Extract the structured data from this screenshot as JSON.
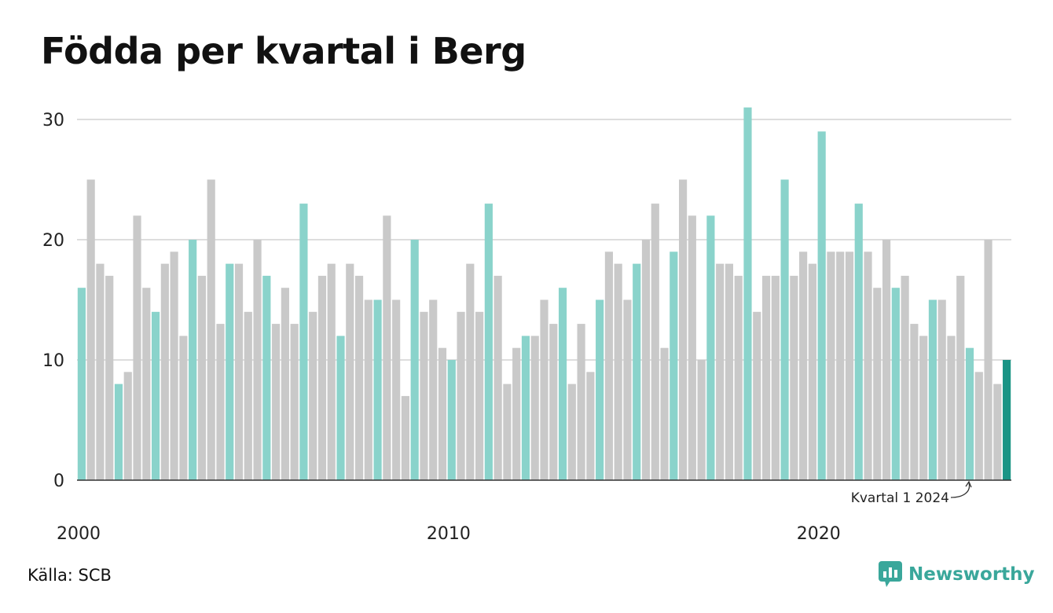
{
  "title": "Födda per kvartal i Berg",
  "source": "Källa: SCB",
  "brand": "Newsworthy",
  "colors": {
    "q1": "#8ad3cb",
    "other": "#c9c9c9",
    "latest": "#1a9485",
    "grid": "#dddddd",
    "axis": "#333333"
  },
  "chart_data": {
    "type": "bar",
    "title": "Födda per kvartal i Berg",
    "x_start": "2000 Q1",
    "ylim": [
      0,
      32
    ],
    "yticks": [
      0,
      10,
      20,
      30
    ],
    "xticks": [
      2000,
      2010,
      2020
    ],
    "grid": true,
    "annotation": "Kvartal 1 2024",
    "values": [
      16,
      25,
      18,
      17,
      8,
      9,
      22,
      16,
      14,
      18,
      19,
      12,
      20,
      17,
      25,
      13,
      18,
      18,
      14,
      20,
      17,
      13,
      16,
      13,
      23,
      14,
      17,
      18,
      12,
      18,
      17,
      15,
      15,
      22,
      15,
      7,
      20,
      14,
      15,
      11,
      10,
      14,
      18,
      14,
      23,
      17,
      8,
      11,
      12,
      12,
      15,
      13,
      16,
      8,
      13,
      9,
      15,
      19,
      18,
      15,
      18,
      20,
      23,
      11,
      19,
      25,
      22,
      10,
      22,
      18,
      18,
      17,
      31,
      14,
      17,
      17,
      25,
      17,
      19,
      18,
      29,
      19,
      19,
      19,
      23,
      19,
      16,
      20,
      16,
      17,
      13,
      12,
      15,
      15,
      12,
      17,
      11,
      9,
      20,
      8,
      10
    ]
  }
}
